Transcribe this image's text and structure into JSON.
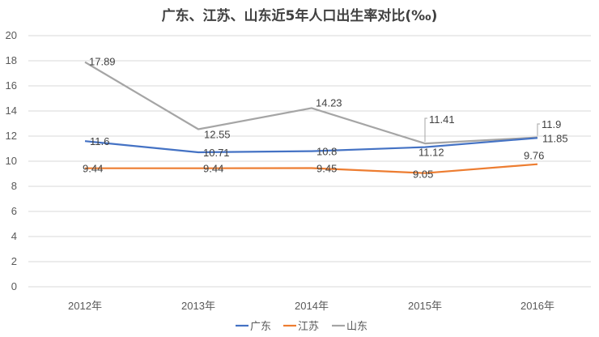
{
  "chart_data": {
    "type": "line",
    "title": "广东、江苏、山东近5年人口出生率对比(‰)",
    "categories": [
      "2012年",
      "2013年",
      "2014年",
      "2015年",
      "2016年"
    ],
    "ylim": [
      0,
      20
    ],
    "y_ticks": [
      "0",
      "2",
      "4",
      "6",
      "8",
      "10",
      "12",
      "14",
      "16",
      "18",
      "20"
    ],
    "grid": true,
    "legend_position": "bottom",
    "series": [
      {
        "name": "广东",
        "color": "#4472c4",
        "values": [
          11.6,
          10.71,
          10.8,
          11.12,
          11.85
        ],
        "labels": [
          "11.6",
          "10.71",
          "10.8",
          "11.12",
          "11.85"
        ]
      },
      {
        "name": "江苏",
        "color": "#ed7d31",
        "values": [
          9.44,
          9.44,
          9.45,
          9.05,
          9.76
        ],
        "labels": [
          "9.44",
          "9.44",
          "9.45",
          "9.05",
          "9.76"
        ]
      },
      {
        "name": "山东",
        "color": "#a5a5a5",
        "values": [
          17.89,
          12.55,
          14.23,
          11.41,
          11.9
        ],
        "labels": [
          "17.89",
          "12.55",
          "14.23",
          "11.41",
          "11.9"
        ]
      }
    ]
  }
}
